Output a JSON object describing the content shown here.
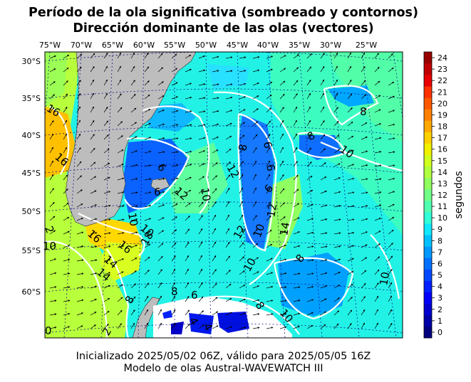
{
  "header": {
    "title_line1": "Período de la ola significativa (sombreado y contornos)",
    "title_line2": "Dirección dominante de las olas (vectores)"
  },
  "footer": {
    "line1": "Inicializado 2025/05/02 06Z, válido para 2025/05/05 16Z",
    "line2": "Modelo de olas Austral-WAVEWATCH III"
  },
  "map": {
    "lon_labels": [
      "75°W",
      "70°W",
      "65°W",
      "60°W",
      "55°W",
      "50°W",
      "45°W",
      "40°W",
      "35°W",
      "30°W",
      "25°W"
    ],
    "lat_labels": [
      "30°S",
      "35°S",
      "40°S",
      "45°S",
      "50°S",
      "55°S",
      "60°S"
    ],
    "contour_labels": [
      "16",
      "16",
      "16",
      "14",
      "14",
      "12",
      "12",
      "12",
      "10",
      "10",
      "10",
      "10",
      "10",
      "10",
      "10",
      "10",
      "8",
      "8",
      "8",
      "8",
      "8",
      "8",
      "6",
      "6",
      "6",
      "6",
      "6",
      "6",
      "4",
      "4",
      "2",
      "2",
      "0",
      "14",
      "18",
      "16",
      "12",
      "8",
      "10"
    ],
    "colors": {
      "land": "#bdbdbd",
      "contour": "#ffffff",
      "graticule": "#00007f"
    }
  },
  "colorbar": {
    "label": "segundos",
    "ticks": [
      "0",
      "1",
      "2",
      "3",
      "4",
      "5",
      "6",
      "7",
      "8",
      "9",
      "10",
      "11",
      "12",
      "13",
      "14",
      "15",
      "16",
      "17",
      "18",
      "19",
      "20",
      "21",
      "22",
      "23",
      "24"
    ],
    "colors": [
      "#00007f",
      "#0000a8",
      "#0000d0",
      "#0000f8",
      "#0020ff",
      "#0048ff",
      "#0070ff",
      "#0098ff",
      "#00c0ff",
      "#10e8ff",
      "#30ffd8",
      "#50ffb0",
      "#70ff88",
      "#90ff60",
      "#b0ff40",
      "#d0ff20",
      "#f0f000",
      "#ffd000",
      "#ffa800",
      "#ff8000",
      "#ff5800",
      "#ff3000",
      "#e80000",
      "#c00000",
      "#980000"
    ]
  }
}
